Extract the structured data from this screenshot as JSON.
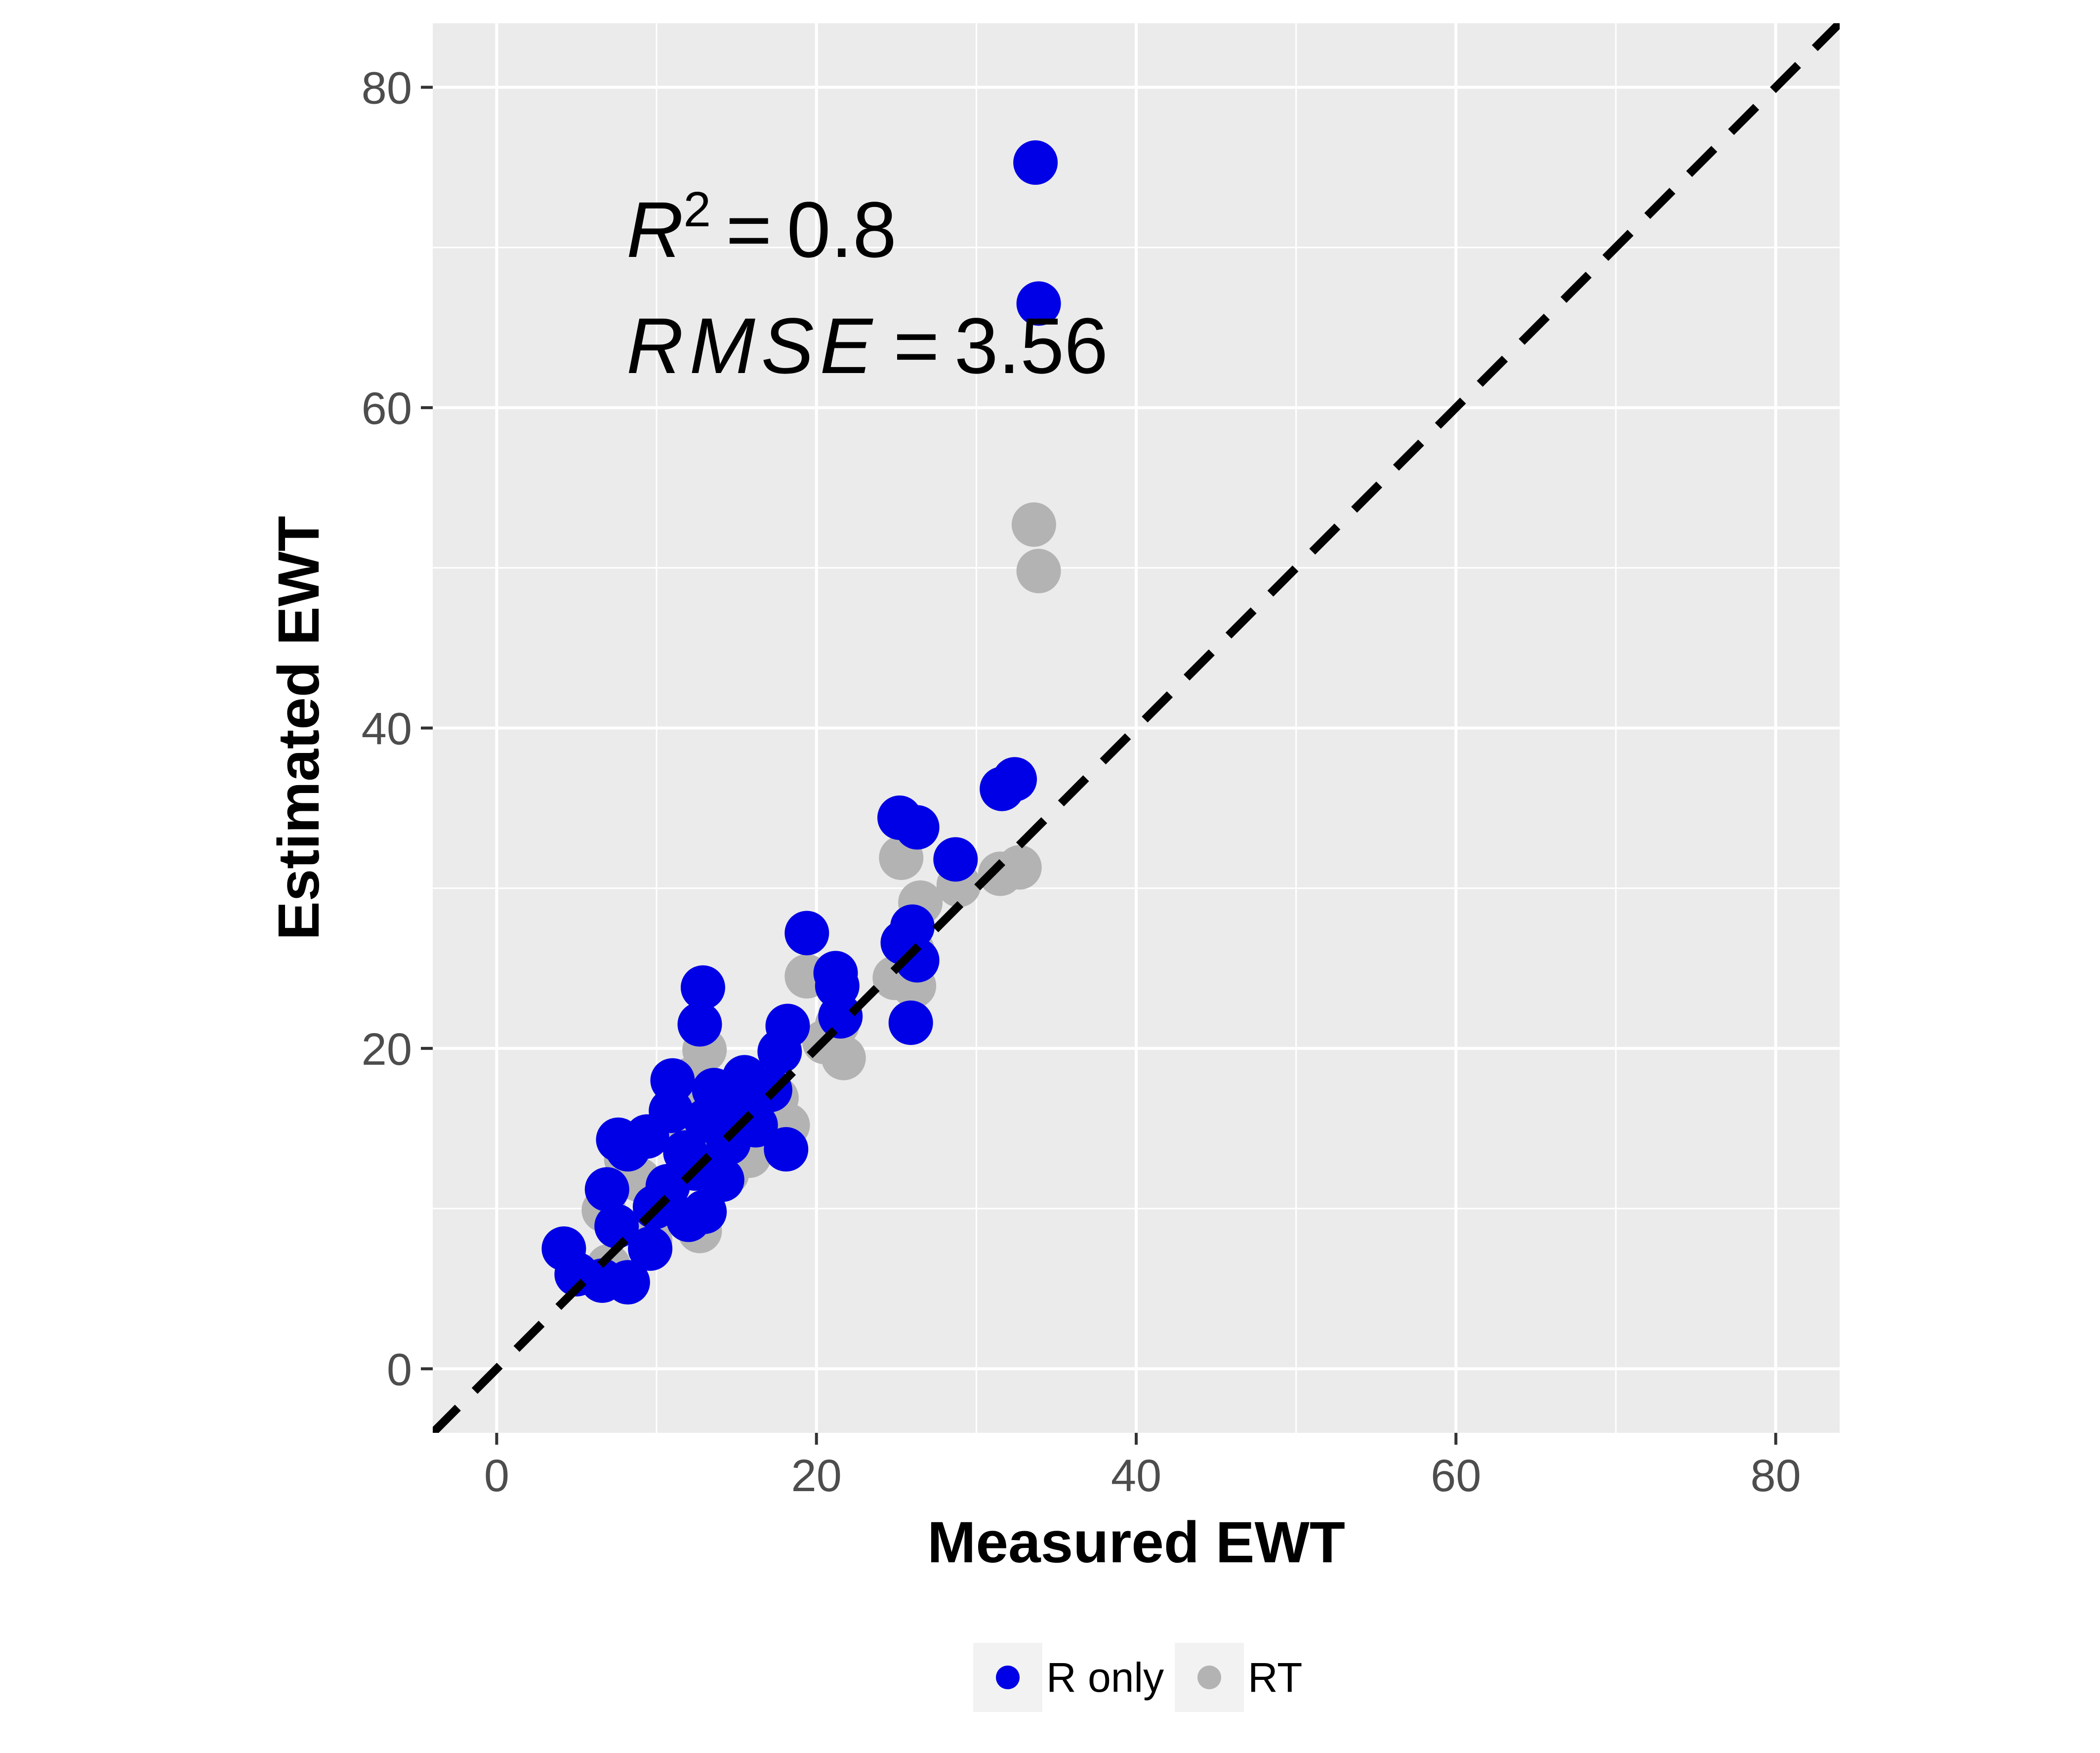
{
  "chart_data": {
    "type": "scatter",
    "xlabel": "Measured EWT",
    "ylabel": "Estimated EWT",
    "xlim": [
      -4,
      84
    ],
    "ylim": [
      -4,
      84
    ],
    "x_ticks": [
      0,
      20,
      40,
      60,
      80
    ],
    "y_ticks": [
      0,
      20,
      40,
      60,
      80
    ],
    "x_tick_labels": [
      "0",
      "20",
      "40",
      "60",
      "80"
    ],
    "y_tick_labels": [
      "0",
      "20",
      "40",
      "60",
      "80"
    ],
    "grid": true,
    "reference_line": {
      "type": "identity",
      "style": "dashed",
      "color": "#000000"
    },
    "annotations": [
      {
        "var": "R",
        "sup": "2",
        "op": "=",
        "value": "0.8"
      },
      {
        "var": "RMSE",
        "op": "=",
        "value": "3.56"
      }
    ],
    "legend": {
      "position": "bottom"
    },
    "series": [
      {
        "name": "RT",
        "color": "#b3b3b3",
        "x": [
          33.6,
          33.9,
          31.5,
          32.7,
          25.3,
          26.5,
          28.9,
          19.4,
          21.3,
          21.7,
          26.1,
          26.0,
          13.0,
          12.2,
          18.2,
          15.8,
          11.4,
          12.8,
          10.6,
          8.1,
          10.9,
          14.4,
          12.7,
          9.6,
          7.0,
          6.7,
          8.9,
          17.5,
          20.5,
          24.9
        ],
        "y": [
          52.7,
          49.8,
          30.9,
          31.3,
          31.9,
          29.1,
          30.2,
          24.5,
          21.5,
          19.4,
          23.9,
          26.1,
          19.9,
          18.1,
          15.2,
          13.3,
          16.1,
          12.9,
          9.9,
          13.1,
          14.9,
          12.2,
          8.6,
          8.0,
          6.4,
          9.9,
          11.8,
          16.9,
          20.4,
          24.4
        ]
      },
      {
        "name": "R only",
        "color": "#0000e6",
        "x": [
          33.7,
          33.9,
          31.6,
          32.4,
          25.2,
          26.3,
          28.7,
          19.4,
          21.2,
          21.5,
          21.3,
          26.0,
          25.4,
          26.3,
          25.9,
          12.9,
          12.7,
          18.2,
          17.7,
          15.5,
          14.6,
          13.6,
          13.1,
          11.0,
          10.9,
          9.4,
          8.2,
          7.6,
          6.9,
          4.2,
          5.0,
          6.6,
          8.2,
          9.6,
          12.0,
          18.1,
          14.5,
          16.2,
          17.1,
          11.8,
          12.4,
          10.7,
          9.9,
          7.5,
          13.0,
          14.1
        ],
        "y": [
          75.3,
          66.5,
          36.2,
          36.8,
          34.4,
          33.8,
          31.8,
          27.2,
          24.7,
          22.0,
          23.9,
          27.6,
          26.6,
          25.5,
          21.6,
          23.8,
          21.5,
          21.4,
          19.8,
          18.2,
          16.8,
          17.4,
          15.5,
          18.0,
          16.1,
          14.5,
          13.7,
          14.3,
          11.2,
          7.5,
          5.9,
          5.5,
          5.4,
          7.5,
          9.3,
          13.7,
          14.1,
          15.2,
          17.4,
          13.5,
          12.5,
          11.4,
          10.1,
          8.9,
          9.8,
          11.8
        ]
      }
    ]
  }
}
